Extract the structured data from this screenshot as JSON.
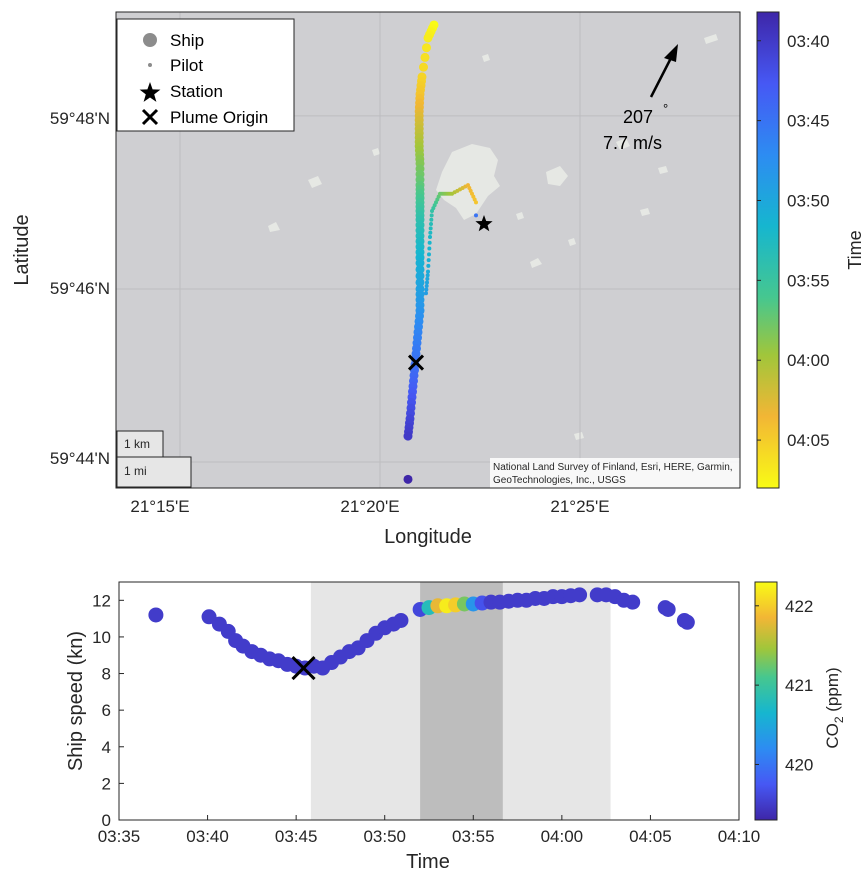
{
  "chart_data": [
    {
      "type": "scatter",
      "panel": "map",
      "xlabel": "Longitude",
      "ylabel": "Latitude",
      "x_ticks": [
        "21°15'E",
        "21°20'E",
        "21°25'E"
      ],
      "y_ticks": [
        "59°44'N",
        "59°46'N",
        "59°48'N"
      ],
      "xlim_minutes": [
        13.4,
        29.0
      ],
      "ylim_minutes": [
        43.7,
        49.2
      ],
      "colorbar": {
        "label": "Time",
        "ticks": [
          "03:40",
          "03:45",
          "03:50",
          "03:55",
          "04:00",
          "04:05"
        ],
        "range_minutes": [
          218.2,
          248.0
        ],
        "direction": "reversed"
      },
      "legend": {
        "placement": "top-left",
        "entries": [
          "Ship",
          "Pilot",
          "Station",
          "Plume Origin"
        ]
      },
      "scalebar": [
        "1 km",
        "1 mi"
      ],
      "attribution": [
        "National Land Survey of Finland, Esri, HERE, Garmin,",
        "GeoTechnologies, Inc., USGS"
      ],
      "wind": {
        "direction_deg": "207",
        "degree_symbol": "°",
        "speed": "7.7 m/s"
      },
      "station": {
        "lon_min": 22.6,
        "lat_min": 46.75
      },
      "plume_origin": {
        "lon_min": 20.9,
        "lat_min": 45.15
      },
      "ship_track": [
        {
          "lon_min": 21.35,
          "lat_min": 49.05,
          "time_min": 248.0
        },
        {
          "lon_min": 21.2,
          "lat_min": 48.9,
          "time_min": 247.0
        },
        {
          "lon_min": 21.05,
          "lat_min": 48.45,
          "time_min": 245.5
        },
        {
          "lon_min": 21.0,
          "lat_min": 48.25,
          "time_min": 244.5
        },
        {
          "lon_min": 20.98,
          "lat_min": 48.05,
          "time_min": 243.0
        },
        {
          "lon_min": 20.98,
          "lat_min": 47.85,
          "time_min": 241.5
        },
        {
          "lon_min": 20.98,
          "lat_min": 47.65,
          "time_min": 240.0
        },
        {
          "lon_min": 21.0,
          "lat_min": 47.45,
          "time_min": 238.5
        },
        {
          "lon_min": 21.0,
          "lat_min": 47.2,
          "time_min": 237.0
        },
        {
          "lon_min": 21.0,
          "lat_min": 47.0,
          "time_min": 235.5
        },
        {
          "lon_min": 21.0,
          "lat_min": 46.8,
          "time_min": 234.0
        },
        {
          "lon_min": 21.0,
          "lat_min": 46.55,
          "time_min": 232.5
        },
        {
          "lon_min": 21.0,
          "lat_min": 46.3,
          "time_min": 231.0
        },
        {
          "lon_min": 21.0,
          "lat_min": 46.0,
          "time_min": 229.5
        },
        {
          "lon_min": 21.0,
          "lat_min": 45.75,
          "time_min": 228.0
        },
        {
          "lon_min": 20.95,
          "lat_min": 45.5,
          "time_min": 226.5
        },
        {
          "lon_min": 20.9,
          "lat_min": 45.25,
          "time_min": 225.3
        },
        {
          "lon_min": 20.85,
          "lat_min": 45.0,
          "time_min": 224.0
        },
        {
          "lon_min": 20.8,
          "lat_min": 44.75,
          "time_min": 222.5
        },
        {
          "lon_min": 20.75,
          "lat_min": 44.5,
          "time_min": 221.0
        },
        {
          "lon_min": 20.7,
          "lat_min": 44.3,
          "time_min": 220.0
        },
        {
          "lon_min": 20.7,
          "lat_min": 43.8,
          "time_min": 217.0
        }
      ],
      "pilot_track": [
        {
          "lon_min": 21.15,
          "lat_min": 45.95,
          "time_min": 229.0
        },
        {
          "lon_min": 21.2,
          "lat_min": 46.2,
          "time_min": 230.5
        },
        {
          "lon_min": 21.25,
          "lat_min": 46.6,
          "time_min": 232.0
        },
        {
          "lon_min": 21.3,
          "lat_min": 46.9,
          "time_min": 234.5
        },
        {
          "lon_min": 21.5,
          "lat_min": 47.1,
          "time_min": 237.5
        },
        {
          "lon_min": 21.8,
          "lat_min": 47.1,
          "time_min": 240.0
        },
        {
          "lon_min": 22.2,
          "lat_min": 47.2,
          "time_min": 243.5
        },
        {
          "lon_min": 22.4,
          "lat_min": 47.0,
          "time_min": 244.5
        },
        {
          "lon_min": 22.4,
          "lat_min": 46.85,
          "time_min": 225.0
        }
      ]
    },
    {
      "type": "scatter",
      "panel": "speed",
      "xlabel": "Time",
      "ylabel": "Ship speed (kn)",
      "x_ticks": [
        "03:35",
        "03:40",
        "03:45",
        "03:50",
        "03:55",
        "04:00",
        "04:05",
        "04:10"
      ],
      "y_ticks": [
        "0",
        "2",
        "4",
        "6",
        "8",
        "10",
        "12"
      ],
      "xlim": [
        "03:35",
        "04:10"
      ],
      "ylim": [
        0,
        13
      ],
      "colorbar": {
        "label_main": "CO",
        "label_sub": "2",
        "label_unit": " (ppm)",
        "ticks": [
          "420",
          "421",
          "422"
        ],
        "range": [
          419.3,
          422.3
        ]
      },
      "shaded_spans": [
        {
          "start": "03:45:50",
          "end": "04:02:45",
          "shade": "light"
        },
        {
          "start": "03:52:00",
          "end": "03:56:40",
          "shade": "dark"
        }
      ],
      "plume_origin": {
        "time": "03:45:25",
        "speed": 8.3
      },
      "points": [
        {
          "t": "03:37:05",
          "speed": 11.2,
          "co2": 419.5
        },
        {
          "t": "03:40:05",
          "speed": 11.1,
          "co2": 419.5
        },
        {
          "t": "03:40:40",
          "speed": 10.7,
          "co2": 419.5
        },
        {
          "t": "03:41:10",
          "speed": 10.3,
          "co2": 419.5
        },
        {
          "t": "03:41:35",
          "speed": 9.8,
          "co2": 419.5
        },
        {
          "t": "03:42:00",
          "speed": 9.5,
          "co2": 419.5
        },
        {
          "t": "03:42:30",
          "speed": 9.2,
          "co2": 419.5
        },
        {
          "t": "03:43:00",
          "speed": 9.0,
          "co2": 419.5
        },
        {
          "t": "03:43:30",
          "speed": 8.8,
          "co2": 419.5
        },
        {
          "t": "03:44:00",
          "speed": 8.7,
          "co2": 419.5
        },
        {
          "t": "03:44:30",
          "speed": 8.5,
          "co2": 419.5
        },
        {
          "t": "03:45:00",
          "speed": 8.4,
          "co2": 419.5
        },
        {
          "t": "03:45:30",
          "speed": 8.3,
          "co2": 419.5
        },
        {
          "t": "03:46:00",
          "speed": 8.4,
          "co2": 419.5
        },
        {
          "t": "03:46:30",
          "speed": 8.3,
          "co2": 419.5
        },
        {
          "t": "03:47:00",
          "speed": 8.6,
          "co2": 419.5
        },
        {
          "t": "03:47:30",
          "speed": 8.9,
          "co2": 419.5
        },
        {
          "t": "03:48:00",
          "speed": 9.2,
          "co2": 419.5
        },
        {
          "t": "03:48:30",
          "speed": 9.4,
          "co2": 419.5
        },
        {
          "t": "03:49:00",
          "speed": 9.8,
          "co2": 419.5
        },
        {
          "t": "03:49:30",
          "speed": 10.2,
          "co2": 419.5
        },
        {
          "t": "03:50:00",
          "speed": 10.5,
          "co2": 419.5
        },
        {
          "t": "03:50:30",
          "speed": 10.7,
          "co2": 419.5
        },
        {
          "t": "03:50:55",
          "speed": 10.9,
          "co2": 419.5
        },
        {
          "t": "03:52:00",
          "speed": 11.5,
          "co2": 419.6
        },
        {
          "t": "03:52:30",
          "speed": 11.6,
          "co2": 420.8
        },
        {
          "t": "03:53:00",
          "speed": 11.7,
          "co2": 421.8
        },
        {
          "t": "03:53:30",
          "speed": 11.7,
          "co2": 422.2
        },
        {
          "t": "03:54:00",
          "speed": 11.75,
          "co2": 422.0
        },
        {
          "t": "03:54:30",
          "speed": 11.8,
          "co2": 421.3
        },
        {
          "t": "03:55:00",
          "speed": 11.8,
          "co2": 420.3
        },
        {
          "t": "03:55:30",
          "speed": 11.85,
          "co2": 419.7
        },
        {
          "t": "03:56:00",
          "speed": 11.9,
          "co2": 419.5
        },
        {
          "t": "03:56:30",
          "speed": 11.9,
          "co2": 419.5
        },
        {
          "t": "03:57:00",
          "speed": 11.95,
          "co2": 419.5
        },
        {
          "t": "03:57:30",
          "speed": 12.0,
          "co2": 419.5
        },
        {
          "t": "03:58:00",
          "speed": 12.0,
          "co2": 419.5
        },
        {
          "t": "03:58:30",
          "speed": 12.1,
          "co2": 419.5
        },
        {
          "t": "03:59:00",
          "speed": 12.1,
          "co2": 419.5
        },
        {
          "t": "03:59:30",
          "speed": 12.2,
          "co2": 419.5
        },
        {
          "t": "04:00:00",
          "speed": 12.2,
          "co2": 419.5
        },
        {
          "t": "04:00:30",
          "speed": 12.25,
          "co2": 419.5
        },
        {
          "t": "04:01:00",
          "speed": 12.3,
          "co2": 419.5
        },
        {
          "t": "04:02:00",
          "speed": 12.3,
          "co2": 419.5
        },
        {
          "t": "04:02:30",
          "speed": 12.3,
          "co2": 419.5
        },
        {
          "t": "04:03:00",
          "speed": 12.2,
          "co2": 419.5
        },
        {
          "t": "04:03:30",
          "speed": 12.0,
          "co2": 419.5
        },
        {
          "t": "04:04:00",
          "speed": 11.9,
          "co2": 419.5
        },
        {
          "t": "04:05:50",
          "speed": 11.6,
          "co2": 419.5
        },
        {
          "t": "04:06:00",
          "speed": 11.5,
          "co2": 419.5
        },
        {
          "t": "04:06:55",
          "speed": 10.9,
          "co2": 419.5
        },
        {
          "t": "04:07:05",
          "speed": 10.8,
          "co2": 419.5
        }
      ]
    }
  ]
}
